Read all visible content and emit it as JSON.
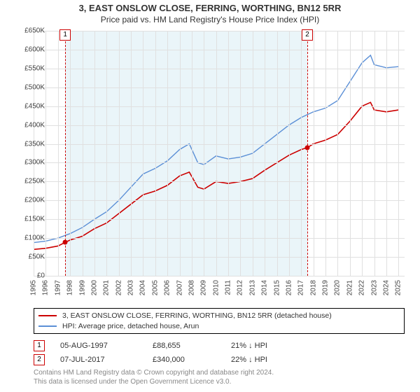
{
  "title_line1": "3, EAST ONSLOW CLOSE, FERRING, WORTHING, BN12 5RR",
  "title_line2": "Price paid vs. HM Land Registry's House Price Index (HPI)",
  "chart": {
    "type": "line",
    "background_color": "#ffffff",
    "grid_color": "#e0e0e0",
    "axis_color": "#888888",
    "tick_font_size": 10,
    "x": {
      "min": 1995,
      "max": 2025.5,
      "ticks": [
        1995,
        1996,
        1997,
        1998,
        1999,
        2000,
        2001,
        2002,
        2003,
        2004,
        2005,
        2006,
        2007,
        2008,
        2009,
        2010,
        2011,
        2012,
        2013,
        2014,
        2015,
        2016,
        2017,
        2018,
        2019,
        2020,
        2021,
        2022,
        2023,
        2024,
        2025
      ]
    },
    "y": {
      "min": 0,
      "max": 650000,
      "step": 50000,
      "tick_labels": [
        "£0",
        "£50K",
        "£100K",
        "£150K",
        "£200K",
        "£250K",
        "£300K",
        "£350K",
        "£400K",
        "£450K",
        "£500K",
        "£550K",
        "£600K",
        "£650K"
      ]
    },
    "shaded_region": {
      "from_x": 1997.6,
      "to_x": 2017.5,
      "color": "rgba(173,216,230,0.25)"
    },
    "markers": [
      {
        "id": "1",
        "x": 1997.6,
        "color": "#cc0000"
      },
      {
        "id": "2",
        "x": 2017.5,
        "color": "#cc0000"
      }
    ],
    "series": [
      {
        "name": "property",
        "label": "3, EAST ONSLOW CLOSE, FERRING, WORTHING, BN12 5RR (detached house)",
        "color": "#cc0000",
        "line_width": 1.6,
        "points": [
          [
            1995,
            70000
          ],
          [
            1996,
            73000
          ],
          [
            1997,
            79000
          ],
          [
            1997.6,
            88655
          ],
          [
            1998,
            95000
          ],
          [
            1999,
            105000
          ],
          [
            2000,
            125000
          ],
          [
            2001,
            140000
          ],
          [
            2002,
            165000
          ],
          [
            2003,
            190000
          ],
          [
            2004,
            215000
          ],
          [
            2005,
            225000
          ],
          [
            2006,
            240000
          ],
          [
            2007,
            265000
          ],
          [
            2007.8,
            275000
          ],
          [
            2008.5,
            235000
          ],
          [
            2009,
            230000
          ],
          [
            2010,
            250000
          ],
          [
            2011,
            245000
          ],
          [
            2012,
            250000
          ],
          [
            2013,
            258000
          ],
          [
            2014,
            280000
          ],
          [
            2015,
            300000
          ],
          [
            2016,
            320000
          ],
          [
            2017,
            335000
          ],
          [
            2017.5,
            340000
          ],
          [
            2018,
            350000
          ],
          [
            2019,
            360000
          ],
          [
            2020,
            375000
          ],
          [
            2021,
            410000
          ],
          [
            2022,
            450000
          ],
          [
            2022.7,
            460000
          ],
          [
            2023,
            440000
          ],
          [
            2024,
            435000
          ],
          [
            2025,
            440000
          ]
        ],
        "dots": [
          [
            1997.6,
            88655
          ],
          [
            2017.5,
            340000
          ]
        ]
      },
      {
        "name": "hpi",
        "label": "HPI: Average price, detached house, Arun",
        "color": "#5b8fd6",
        "line_width": 1.4,
        "points": [
          [
            1995,
            88000
          ],
          [
            1996,
            92000
          ],
          [
            1997,
            100000
          ],
          [
            1998,
            112000
          ],
          [
            1999,
            128000
          ],
          [
            2000,
            150000
          ],
          [
            2001,
            170000
          ],
          [
            2002,
            200000
          ],
          [
            2003,
            235000
          ],
          [
            2004,
            270000
          ],
          [
            2005,
            285000
          ],
          [
            2006,
            305000
          ],
          [
            2007,
            335000
          ],
          [
            2007.8,
            350000
          ],
          [
            2008.5,
            300000
          ],
          [
            2009,
            295000
          ],
          [
            2010,
            318000
          ],
          [
            2011,
            310000
          ],
          [
            2012,
            315000
          ],
          [
            2013,
            325000
          ],
          [
            2014,
            350000
          ],
          [
            2015,
            375000
          ],
          [
            2016,
            400000
          ],
          [
            2017,
            420000
          ],
          [
            2018,
            435000
          ],
          [
            2019,
            445000
          ],
          [
            2020,
            465000
          ],
          [
            2021,
            515000
          ],
          [
            2022,
            565000
          ],
          [
            2022.7,
            585000
          ],
          [
            2023,
            560000
          ],
          [
            2024,
            552000
          ],
          [
            2025,
            555000
          ]
        ]
      }
    ]
  },
  "legend": {
    "border_color": "#000000",
    "items": [
      {
        "color": "#cc0000",
        "text": "3, EAST ONSLOW CLOSE, FERRING, WORTHING, BN12 5RR (detached house)"
      },
      {
        "color": "#5b8fd6",
        "text": "HPI: Average price, detached house, Arun"
      }
    ]
  },
  "events": [
    {
      "id": "1",
      "color": "#cc0000",
      "date": "05-AUG-1997",
      "price": "£88,655",
      "delta": "21% ↓ HPI"
    },
    {
      "id": "2",
      "color": "#cc0000",
      "date": "07-JUL-2017",
      "price": "£340,000",
      "delta": "22% ↓ HPI"
    }
  ],
  "footer_line1": "Contains HM Land Registry data © Crown copyright and database right 2024.",
  "footer_line2": "This data is licensed under the Open Government Licence v3.0."
}
